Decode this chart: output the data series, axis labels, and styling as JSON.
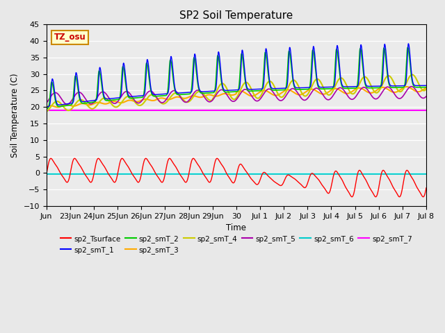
{
  "title": "SP2 Soil Temperature",
  "xlabel": "Time",
  "ylabel": "Soil Temperature (C)",
  "ylim": [
    -10,
    45
  ],
  "yticks": [
    -10,
    -5,
    0,
    5,
    10,
    15,
    20,
    25,
    30,
    35,
    40,
    45
  ],
  "xtick_labels": [
    "Jun",
    "23Jun",
    "24Jun",
    "25Jun",
    "26Jun",
    "27Jun",
    "28Jun",
    "29Jun",
    "30",
    "Jul 1",
    "Jul 2",
    "Jul 3",
    "Jul 4",
    "Jul 5",
    "Jul 6",
    "Jul 7",
    "Jul 8"
  ],
  "annotation_text": "TZ_osu",
  "annotation_color": "#cc0000",
  "annotation_bg": "#ffffcc",
  "annotation_border": "#cc8800",
  "colors": {
    "sp2_Tsurface": "#ff0000",
    "sp2_smT_1": "#0000ff",
    "sp2_smT_2": "#00cc00",
    "sp2_smT_3": "#ffaa00",
    "sp2_smT_4": "#cccc00",
    "sp2_smT_5": "#aa00aa",
    "sp2_smT_6": "#00cccc",
    "sp2_smT_7": "#ff00ff"
  },
  "background_color": "#e8e8e8",
  "plot_bg": "#ebebeb"
}
